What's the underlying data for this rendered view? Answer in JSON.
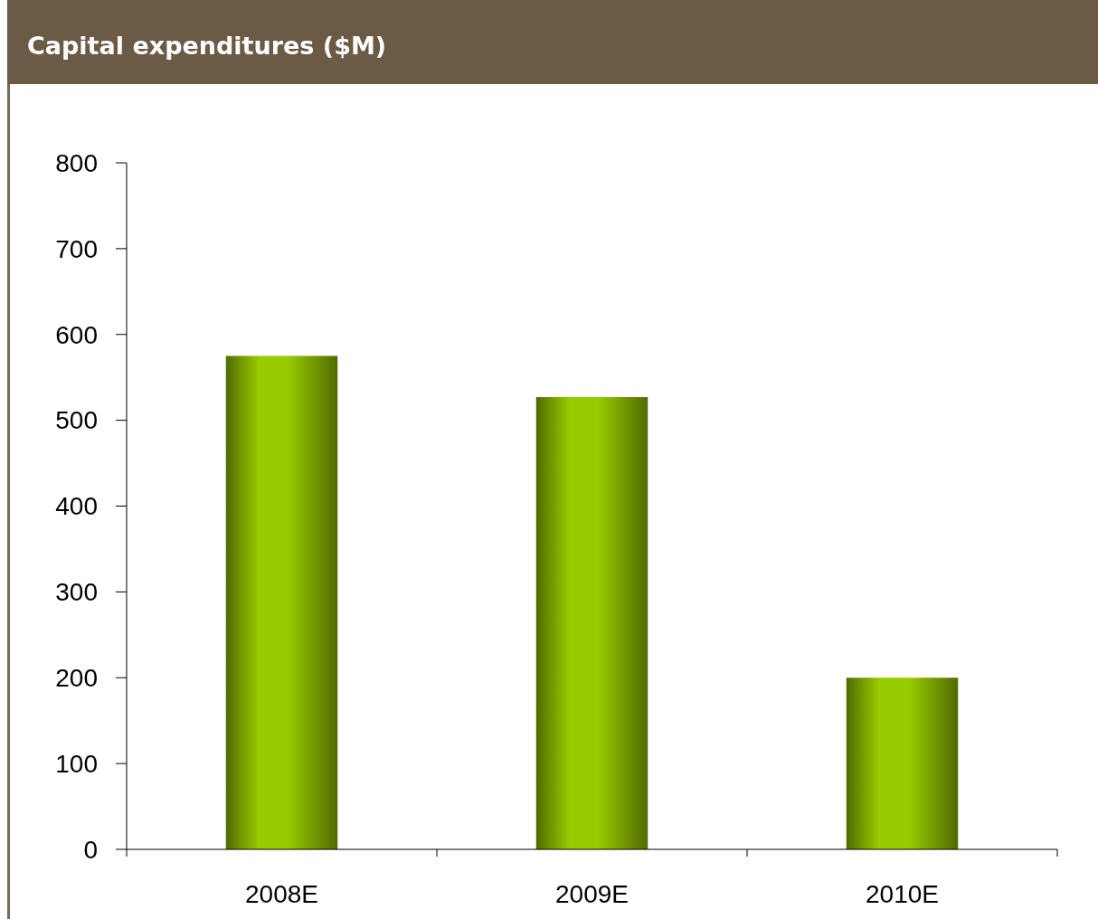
{
  "chart_data": {
    "type": "bar",
    "title": "Capital expenditures ($M)",
    "categories": [
      "2008E",
      "2009E",
      "2010E"
    ],
    "values": [
      575,
      527,
      200
    ],
    "color": "#99cc00",
    "ylim": [
      0,
      800
    ],
    "yticks": [
      0,
      100,
      200,
      300,
      400,
      500,
      600,
      700,
      800
    ],
    "grid": false
  }
}
